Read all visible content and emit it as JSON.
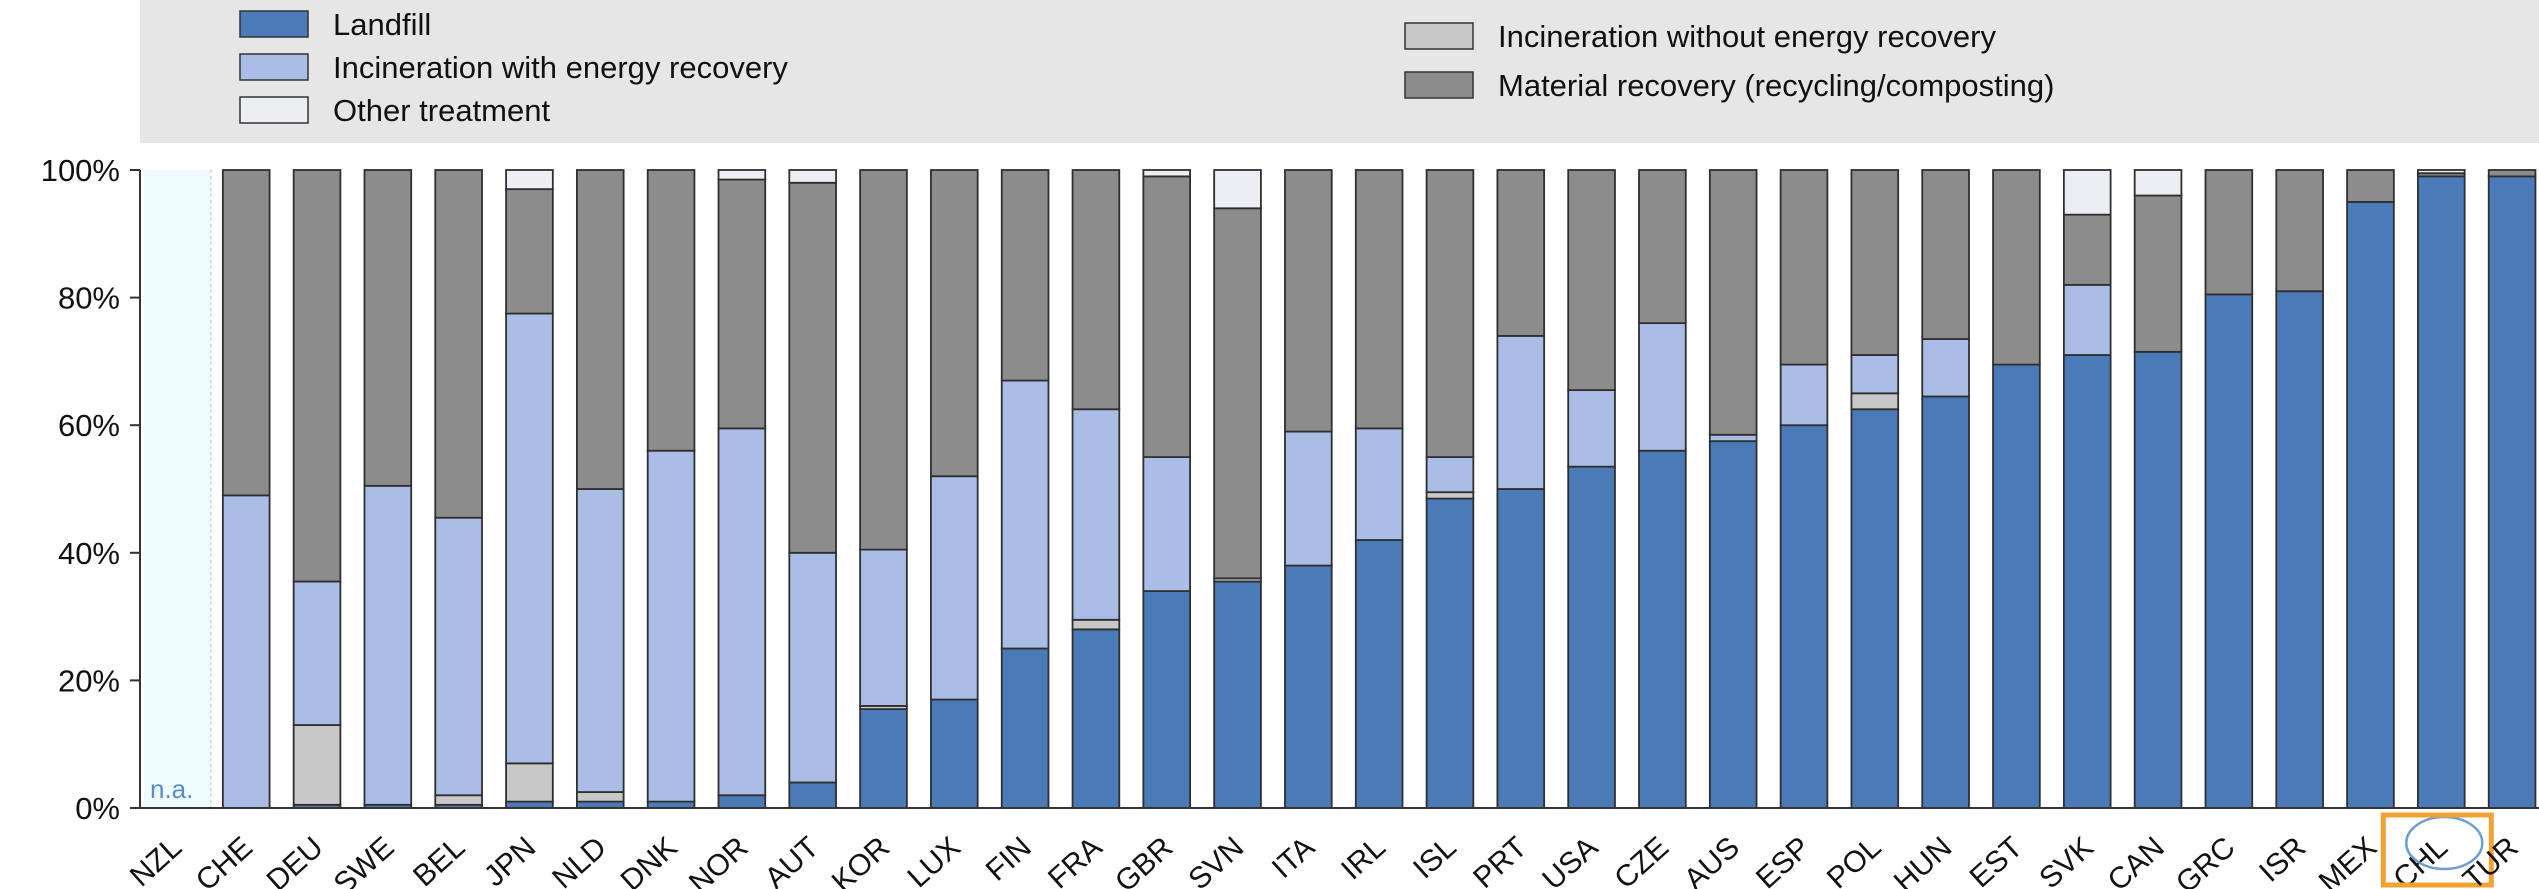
{
  "chart_data": {
    "type": "bar",
    "stacked": true,
    "ylim": [
      0,
      100
    ],
    "yticks": [
      "0%",
      "20%",
      "40%",
      "60%",
      "80%",
      "100%"
    ],
    "grid": false,
    "legend_placement": "top",
    "categories": [
      "NZL",
      "CHE",
      "DEU",
      "SWE",
      "BEL",
      "JPN",
      "NLD",
      "DNK",
      "NOR",
      "AUT",
      "KOR",
      "LUX",
      "FIN",
      "FRA",
      "GBR",
      "SVN",
      "ITA",
      "IRL",
      "ISL",
      "PRT",
      "USA",
      "CZE",
      "AUS",
      "ESP",
      "POL",
      "HUN",
      "EST",
      "SVK",
      "CAN",
      "GRC",
      "ISR",
      "MEX",
      "CHL",
      "TUR"
    ],
    "na_label": "n.a.",
    "highlighted_category": "CHL",
    "series": [
      {
        "name": "Landfill",
        "color": "#4a7ab8",
        "values": [
          0,
          0,
          0.5,
          0.5,
          0.5,
          1,
          1,
          1,
          2,
          4,
          15.5,
          17,
          25,
          28,
          34,
          35.5,
          38,
          42,
          48.5,
          50,
          53.5,
          56,
          57.5,
          60,
          62.5,
          64.5,
          69.5,
          71,
          71.5,
          80.5,
          81,
          95,
          99,
          99
        ]
      },
      {
        "name": "Incineration without energy recovery",
        "color": "#c8c8c8",
        "values": [
          0,
          0,
          12.5,
          0,
          1.5,
          6,
          1.5,
          0,
          0,
          0,
          0.5,
          0,
          0,
          1.5,
          0,
          0.5,
          0,
          0,
          1,
          0,
          0,
          0,
          0,
          0,
          2.5,
          0,
          0,
          0,
          0,
          0,
          0,
          0,
          0,
          0
        ]
      },
      {
        "name": "Incineration with energy recovery",
        "color": "#a9bde6",
        "values": [
          0,
          49,
          22.5,
          50,
          43.5,
          70.5,
          47.5,
          55,
          57.5,
          36,
          24.5,
          35,
          42,
          33,
          21,
          0,
          21,
          17.5,
          5.5,
          24,
          12,
          20,
          1,
          9.5,
          6,
          9,
          0,
          11,
          0,
          0,
          0,
          0,
          0,
          0
        ]
      },
      {
        "name": "Material recovery (recycling/composting)",
        "color": "#8c8c8c",
        "values": [
          0,
          51,
          64.5,
          49.5,
          54.5,
          19.5,
          50,
          44,
          39,
          58,
          59.5,
          48,
          33,
          37.5,
          44,
          58,
          41,
          40.5,
          45,
          26,
          34.5,
          24,
          41.5,
          30.5,
          29,
          26.5,
          30.5,
          11,
          24.5,
          19.5,
          19,
          5,
          0.5,
          1
        ]
      },
      {
        "name": "Other treatment",
        "color": "#eceef3",
        "values": [
          0,
          0,
          0,
          0,
          0,
          3,
          0,
          0,
          1.5,
          2,
          0,
          0,
          0,
          0,
          1,
          6,
          0,
          0,
          0,
          0,
          0,
          0,
          0,
          0,
          0,
          0,
          0,
          7,
          4,
          0,
          0,
          0,
          0.5,
          0
        ]
      }
    ]
  },
  "legend": {
    "left": [
      "Landfill",
      "Incineration with energy recovery",
      "Other treatment"
    ],
    "right": [
      "Incineration without energy recovery",
      "Material recovery (recycling/composting)"
    ]
  }
}
